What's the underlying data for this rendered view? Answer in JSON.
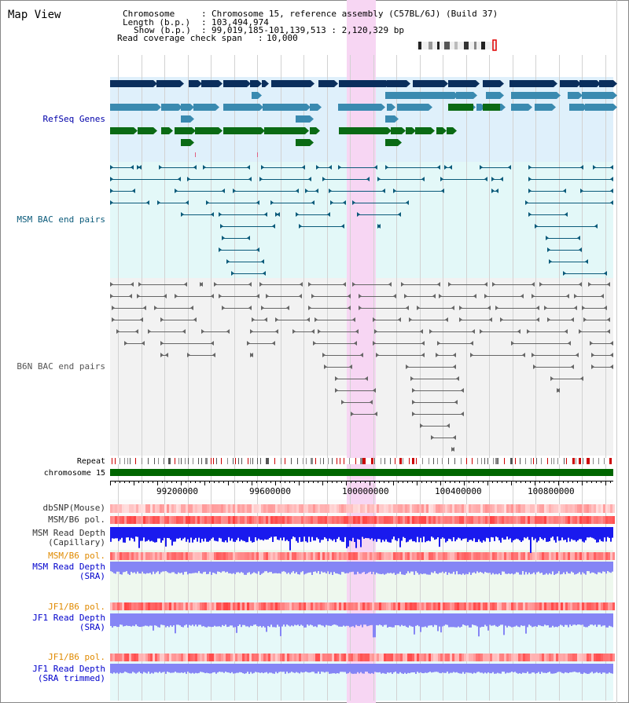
{
  "title": "Map View",
  "header": {
    "chromosome_label": "Chromosome",
    "chromosome_value": "Chromosome 15, reference assembly (C57BL/6J) (Build 37)",
    "length_label": "Length (b.p.)",
    "length_value": "103,494,974",
    "show_label": "Show (b.p.)",
    "show_value": "99,019,185-101,139,513 : 2,120,329 bp",
    "coverage_label": "Read coverage check span",
    "coverage_value": "10,000"
  },
  "tracks": {
    "refseq": {
      "label": "RefSeq Genes",
      "color": "#0000aa"
    },
    "msm_bac": {
      "label": "MSM BAC end pairs",
      "color": "#0a5a7a"
    },
    "b6n_bac": {
      "label": "B6N BAC end pairs",
      "color": "#555555"
    },
    "repeat": {
      "label": "Repeat",
      "color": "#000000"
    },
    "chrom": {
      "label": "chromosome 15",
      "color": "#000000"
    },
    "dbsnp": {
      "label": "dbSNP(Mouse)",
      "color": "#333333"
    },
    "msm_b6_pol": {
      "label": "MSM/B6 pol.",
      "color": "#333333"
    },
    "msm_depth_cap_1": {
      "label": "MSM Read Depth",
      "color": "#333333"
    },
    "msm_depth_cap_2": {
      "label": "(Capillary)",
      "color": "#333333"
    },
    "msm_b6_pol_sra": {
      "label": "MSM/B6 pol.",
      "color": "#e08a00"
    },
    "msm_depth_sra_1": {
      "label": "MSM Read Depth",
      "color": "#0000cc"
    },
    "msm_depth_sra_2": {
      "label": "(SRA)",
      "color": "#0000cc"
    },
    "jf1_pol_1": {
      "label": "JF1/B6 pol.",
      "color": "#e08a00"
    },
    "jf1_depth_1": {
      "label": "JF1 Read Depth",
      "color": "#0000cc"
    },
    "jf1_depth_1b": {
      "label": "(SRA)",
      "color": "#0000cc"
    },
    "jf1_pol_2": {
      "label": "JF1/B6 pol.",
      "color": "#e08a00"
    },
    "jf1_depth_2": {
      "label": "JF1 Read Depth",
      "color": "#0000cc"
    },
    "jf1_depth_2b": {
      "label": "(SRA trimmed)",
      "color": "#0000cc"
    }
  },
  "axis_ticks": [
    "99200000",
    "99600000",
    "100000000",
    "100400000",
    "100800000"
  ],
  "colors": {
    "highlight": "#f7d6f3",
    "refseq_bg": "#dff0fb",
    "msm_bg": "#e3f8f8",
    "b6n_bg": "#f2f2f2",
    "chrom_green": "#006600",
    "gene_dark": "#0a2e5c",
    "gene_mid": "#3a8ab0",
    "gene_green": "#0a6a14",
    "depth_blue": "#1a1aee",
    "depth_light": "#8585f5"
  }
}
